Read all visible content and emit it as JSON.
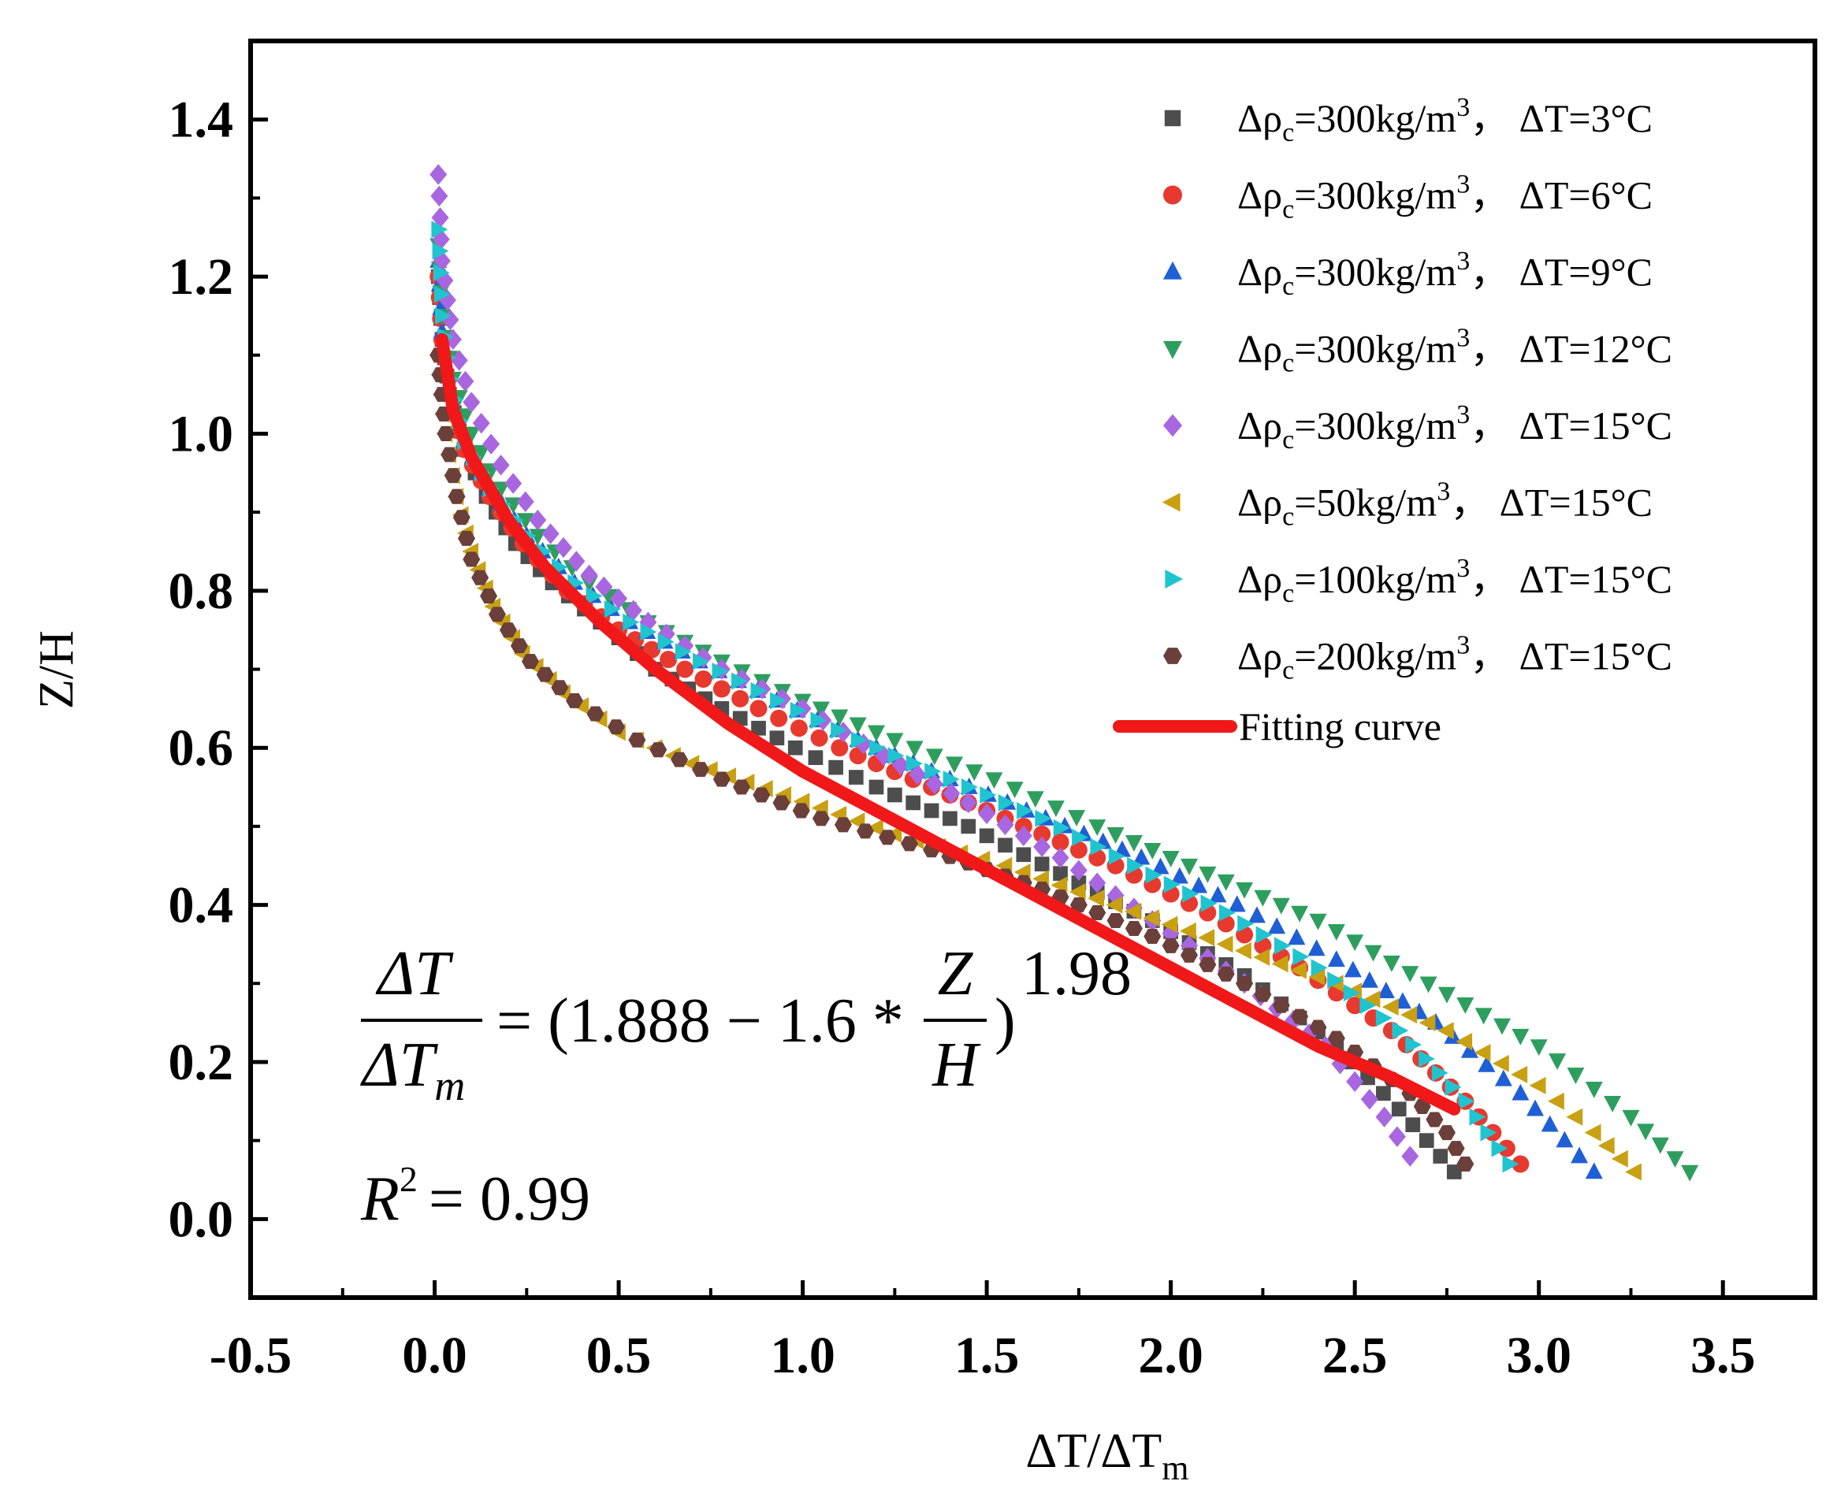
{
  "chart_data": {
    "type": "scatter",
    "xlabel": "ΔT/ΔTm",
    "xlabel_parts": {
      "main": "ΔT/ΔT",
      "sub": "m"
    },
    "ylabel": "Z/H",
    "xlim": [
      -0.5,
      3.75
    ],
    "ylim": [
      -0.1,
      1.5
    ],
    "xticks": [
      -0.5,
      0.0,
      0.5,
      1.0,
      1.5,
      2.0,
      2.5,
      3.0,
      3.5
    ],
    "xtick_labels": [
      "-0.5",
      "0.0",
      "0.5",
      "1.0",
      "1.5",
      "2.0",
      "2.5",
      "3.0",
      "3.5"
    ],
    "yticks": [
      0.0,
      0.2,
      0.4,
      0.6,
      0.8,
      1.0,
      1.2,
      1.4
    ],
    "ytick_labels": [
      "0.0",
      "0.2",
      "0.4",
      "0.6",
      "0.8",
      "1.0",
      "1.2",
      "1.4"
    ],
    "legend_position": "top-right",
    "series": [
      {
        "name": "Δρc=300kg/m³，ΔT=3°C",
        "label_parts": {
          "rho": "300kg/m",
          "dt": "ΔT=3°C"
        },
        "marker": "square",
        "color": "#4d4d4d",
        "x": [
          0.01,
          0.02,
          0.04,
          0.08,
          0.14,
          0.22,
          0.32,
          0.45,
          0.6,
          0.78,
          0.98,
          1.2,
          1.45,
          1.7,
          1.95,
          2.2,
          2.45,
          2.62,
          2.77
        ],
        "y": [
          1.2,
          1.12,
          1.05,
          0.98,
          0.92,
          0.86,
          0.81,
          0.76,
          0.7,
          0.65,
          0.6,
          0.55,
          0.5,
          0.44,
          0.38,
          0.31,
          0.22,
          0.14,
          0.06
        ]
      },
      {
        "name": "Δρc=300kg/m³，ΔT=6°C",
        "label_parts": {
          "rho": "300kg/m",
          "dt": "ΔT=6°C"
        },
        "marker": "circle",
        "color": "#e8392f",
        "x": [
          0.01,
          0.02,
          0.04,
          0.08,
          0.15,
          0.24,
          0.36,
          0.5,
          0.68,
          0.88,
          1.1,
          1.35,
          1.6,
          1.85,
          2.1,
          2.35,
          2.6,
          2.8,
          2.95
        ],
        "y": [
          1.2,
          1.12,
          1.05,
          0.98,
          0.92,
          0.86,
          0.8,
          0.75,
          0.7,
          0.65,
          0.6,
          0.55,
          0.5,
          0.45,
          0.39,
          0.32,
          0.24,
          0.15,
          0.07
        ]
      },
      {
        "name": "Δρc=300kg/m³，ΔT=9°C",
        "label_parts": {
          "rho": "300kg/m",
          "dt": "ΔT=9°C"
        },
        "marker": "triangle-up",
        "color": "#1f5fd6",
        "x": [
          0.01,
          0.02,
          0.04,
          0.08,
          0.15,
          0.25,
          0.38,
          0.53,
          0.72,
          0.93,
          1.15,
          1.4,
          1.66,
          1.92,
          2.18,
          2.45,
          2.72,
          2.95,
          3.15
        ],
        "y": [
          1.22,
          1.13,
          1.06,
          0.99,
          0.93,
          0.87,
          0.81,
          0.76,
          0.71,
          0.66,
          0.61,
          0.56,
          0.51,
          0.46,
          0.4,
          0.33,
          0.25,
          0.16,
          0.06
        ]
      },
      {
        "name": "Δρc=300kg/m³，ΔT=12°C",
        "label_parts": {
          "rho": "300kg/m",
          "dt": "ΔT=12°C"
        },
        "marker": "triangle-down",
        "color": "#2e9e5e",
        "x": [
          0.01,
          0.02,
          0.05,
          0.1,
          0.18,
          0.28,
          0.42,
          0.58,
          0.78,
          1.0,
          1.25,
          1.52,
          1.8,
          2.1,
          2.4,
          2.7,
          3.0,
          3.25,
          3.41
        ],
        "y": [
          1.24,
          1.15,
          1.07,
          1.0,
          0.93,
          0.87,
          0.81,
          0.76,
          0.71,
          0.66,
          0.61,
          0.56,
          0.5,
          0.44,
          0.38,
          0.3,
          0.22,
          0.13,
          0.06
        ]
      },
      {
        "name": "Δρc=300kg/m³，ΔT=15°C",
        "label_parts": {
          "rho": "300kg/m",
          "dt": "ΔT=15°C"
        },
        "marker": "diamond",
        "color": "#a866e0",
        "x": [
          0.01,
          0.02,
          0.05,
          0.1,
          0.18,
          0.28,
          0.42,
          0.58,
          0.78,
          1.0,
          1.22,
          1.45,
          1.7,
          1.95,
          2.2,
          2.42,
          2.58,
          2.65
        ],
        "y": [
          1.33,
          1.22,
          1.12,
          1.04,
          0.96,
          0.89,
          0.82,
          0.76,
          0.7,
          0.65,
          0.59,
          0.53,
          0.46,
          0.38,
          0.3,
          0.22,
          0.13,
          0.08
        ]
      },
      {
        "name": "Δρc=50kg/m³，ΔT=15°C",
        "label_parts": {
          "rho": "50kg/m",
          "dt": "ΔT=15°C"
        },
        "marker": "triangle-left",
        "color": "#c9a012",
        "x": [
          0.01,
          0.03,
          0.06,
          0.1,
          0.16,
          0.24,
          0.35,
          0.5,
          0.7,
          0.95,
          1.25,
          1.55,
          1.85,
          2.15,
          2.45,
          2.75,
          3.0,
          3.15,
          3.26
        ],
        "y": [
          1.1,
          1.0,
          0.92,
          0.85,
          0.78,
          0.72,
          0.67,
          0.62,
          0.58,
          0.54,
          0.49,
          0.45,
          0.4,
          0.35,
          0.3,
          0.24,
          0.17,
          0.11,
          0.06
        ]
      },
      {
        "name": "Δρc=100kg/m³，ΔT=15°C",
        "label_parts": {
          "rho": "100kg/m",
          "dt": "ΔT=15°C"
        },
        "marker": "triangle-right",
        "color": "#20c4cf",
        "x": [
          0.01,
          0.02,
          0.04,
          0.08,
          0.15,
          0.25,
          0.38,
          0.53,
          0.72,
          0.93,
          1.15,
          1.4,
          1.65,
          1.9,
          2.15,
          2.4,
          2.62,
          2.8,
          2.92
        ],
        "y": [
          1.26,
          1.15,
          1.07,
          0.99,
          0.93,
          0.87,
          0.81,
          0.76,
          0.71,
          0.66,
          0.61,
          0.56,
          0.51,
          0.45,
          0.39,
          0.32,
          0.24,
          0.15,
          0.07
        ]
      },
      {
        "name": "Δρc=200kg/m³，ΔT=15°C",
        "label_parts": {
          "rho": "200kg/m",
          "dt": "ΔT=15°C"
        },
        "marker": "hexagon",
        "color": "#6b3f3a",
        "x": [
          0.01,
          0.03,
          0.06,
          0.1,
          0.17,
          0.26,
          0.38,
          0.55,
          0.78,
          1.05,
          1.35,
          1.65,
          1.95,
          2.2,
          2.45,
          2.65,
          2.75,
          2.8
        ],
        "y": [
          1.1,
          1.0,
          0.92,
          0.84,
          0.77,
          0.71,
          0.66,
          0.61,
          0.56,
          0.51,
          0.47,
          0.42,
          0.36,
          0.3,
          0.23,
          0.16,
          0.11,
          0.07
        ]
      }
    ],
    "fit": {
      "name": "Fitting curve",
      "color": "#f01818",
      "x": [
        0.02,
        0.05,
        0.1,
        0.2,
        0.3,
        0.45,
        0.6,
        0.8,
        1.0,
        1.2,
        1.4,
        1.6,
        1.8,
        2.0,
        2.2,
        2.4,
        2.6,
        2.77
      ],
      "y": [
        1.12,
        1.03,
        0.97,
        0.89,
        0.83,
        0.76,
        0.7,
        0.63,
        0.57,
        0.52,
        0.47,
        0.42,
        0.37,
        0.32,
        0.27,
        0.22,
        0.18,
        0.14
      ]
    },
    "annotations": {
      "eq_num": "ΔT",
      "eq_den_main": "ΔT",
      "eq_den_sub": "m",
      "eq_mid": "= (1.888 − 1.6 *",
      "eq_frac_num": "Z",
      "eq_frac_den": "H",
      "eq_close": ")",
      "eq_exp": "1.98",
      "r2_label": "R",
      "r2_exp": "2",
      "r2_value": "= 0.99"
    }
  }
}
